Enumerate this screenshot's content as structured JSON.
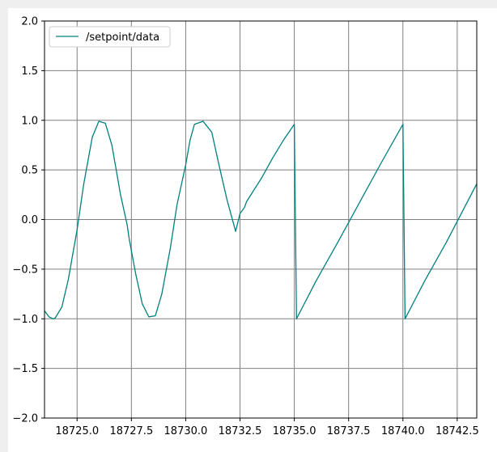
{
  "chart_data": {
    "type": "line",
    "title": "",
    "xlabel": "",
    "ylabel": "",
    "xlim": [
      18723.5,
      18743.4
    ],
    "ylim": [
      -2.0,
      2.0
    ],
    "grid": true,
    "legend": {
      "placement": "top-left",
      "entries": [
        "/setpoint/data"
      ]
    },
    "x_ticks": [
      18725.0,
      18727.5,
      18730.0,
      18732.5,
      18735.0,
      18737.5,
      18740.0,
      18742.5
    ],
    "x_tick_labels": [
      "18725.0",
      "18727.5",
      "18730.0",
      "18732.5",
      "18735.0",
      "18737.5",
      "18740.0",
      "18742.5"
    ],
    "y_ticks": [
      2.0,
      1.5,
      1.0,
      0.5,
      0.0,
      -0.5,
      -1.0,
      -1.5,
      -2.0
    ],
    "y_tick_labels": [
      "2.0",
      "1.5",
      "1.0",
      "0.5",
      "0.0",
      "−0.5",
      "−1.0",
      "−1.5",
      "−2.0"
    ],
    "series": [
      {
        "name": "/setpoint/data",
        "color": "#008080",
        "x": [
          18723.5,
          18723.7,
          18723.9,
          18724.0,
          18724.3,
          18724.6,
          18725.0,
          18725.3,
          18725.7,
          18726.0,
          18726.3,
          18726.6,
          18727.0,
          18727.3,
          18727.4,
          18727.7,
          18728.0,
          18728.3,
          18728.6,
          18728.9,
          18729.3,
          18729.6,
          18730.0,
          18730.2,
          18730.4,
          18730.8,
          18731.2,
          18731.5,
          18731.9,
          18732.3,
          18732.5,
          18732.7,
          18732.8,
          18733.5,
          18734.0,
          18734.5,
          18735.0,
          18735.1,
          18736.0,
          18737.0,
          18738.0,
          18739.0,
          18740.0,
          18740.1,
          18741.0,
          18742.0,
          18743.4
        ],
        "y": [
          -0.92,
          -0.98,
          -1.0,
          -0.99,
          -0.88,
          -0.6,
          -0.1,
          0.35,
          0.83,
          0.99,
          0.97,
          0.75,
          0.25,
          -0.05,
          -0.2,
          -0.55,
          -0.85,
          -0.98,
          -0.97,
          -0.75,
          -0.28,
          0.15,
          0.55,
          0.8,
          0.96,
          0.99,
          0.88,
          0.58,
          0.2,
          -0.12,
          0.06,
          0.12,
          0.18,
          0.42,
          0.62,
          0.8,
          0.96,
          -1.0,
          -0.62,
          -0.23,
          0.17,
          0.57,
          0.96,
          -1.0,
          -0.62,
          -0.23,
          0.36
        ]
      }
    ]
  }
}
